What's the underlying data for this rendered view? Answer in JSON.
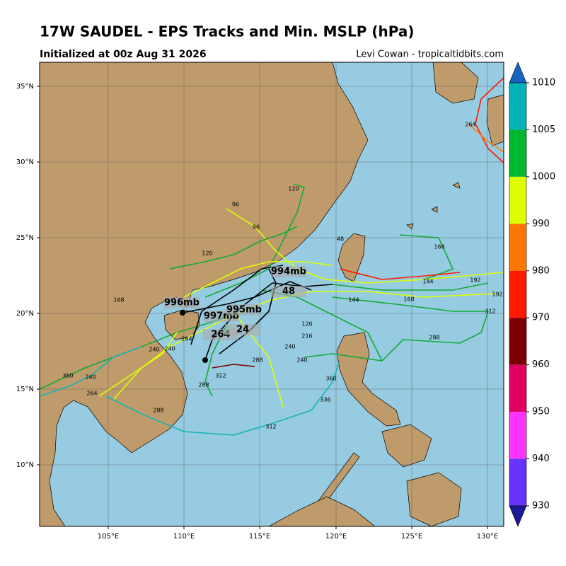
{
  "header": {
    "title": "17W SAUDEL - EPS Tracks and Min. MSLP (hPa)",
    "subtitle": "Initialized at 00z Aug 31 2026",
    "credit": "Levi Cowan - tropicaltidbits.com"
  },
  "map": {
    "lon_labels": [
      "105°E",
      "110°E",
      "115°E",
      "120°E",
      "125°E",
      "130°E"
    ],
    "lat_labels": [
      "35°N",
      "30°N",
      "25°N",
      "20°N",
      "15°N",
      "10°N"
    ],
    "storm_labels": [
      "996mb",
      "997mb",
      "995mb",
      "994mb",
      "48",
      "264",
      "24"
    ],
    "hour_labels": [
      "120",
      "96",
      "96",
      "120",
      "48",
      "168",
      "192",
      "192",
      "312",
      "288",
      "264",
      "360",
      "336",
      "312",
      "288",
      "264",
      "360",
      "240",
      "264",
      "144",
      "240",
      "216",
      "240",
      "264",
      "144",
      "120",
      "168",
      "312",
      "288",
      "240",
      "288",
      "240",
      "168"
    ]
  },
  "colorbar": {
    "levels": [
      1010,
      1005,
      1000,
      990,
      980,
      970,
      960,
      950,
      940,
      930
    ],
    "colors": [
      "#1565c0",
      "#00b3b8",
      "#00b82d",
      "#dfff00",
      "#ff7700",
      "#ff1a00",
      "#7a0000",
      "#e00060",
      "#ff33ff",
      "#6633ff",
      "#1a1a99"
    ]
  }
}
